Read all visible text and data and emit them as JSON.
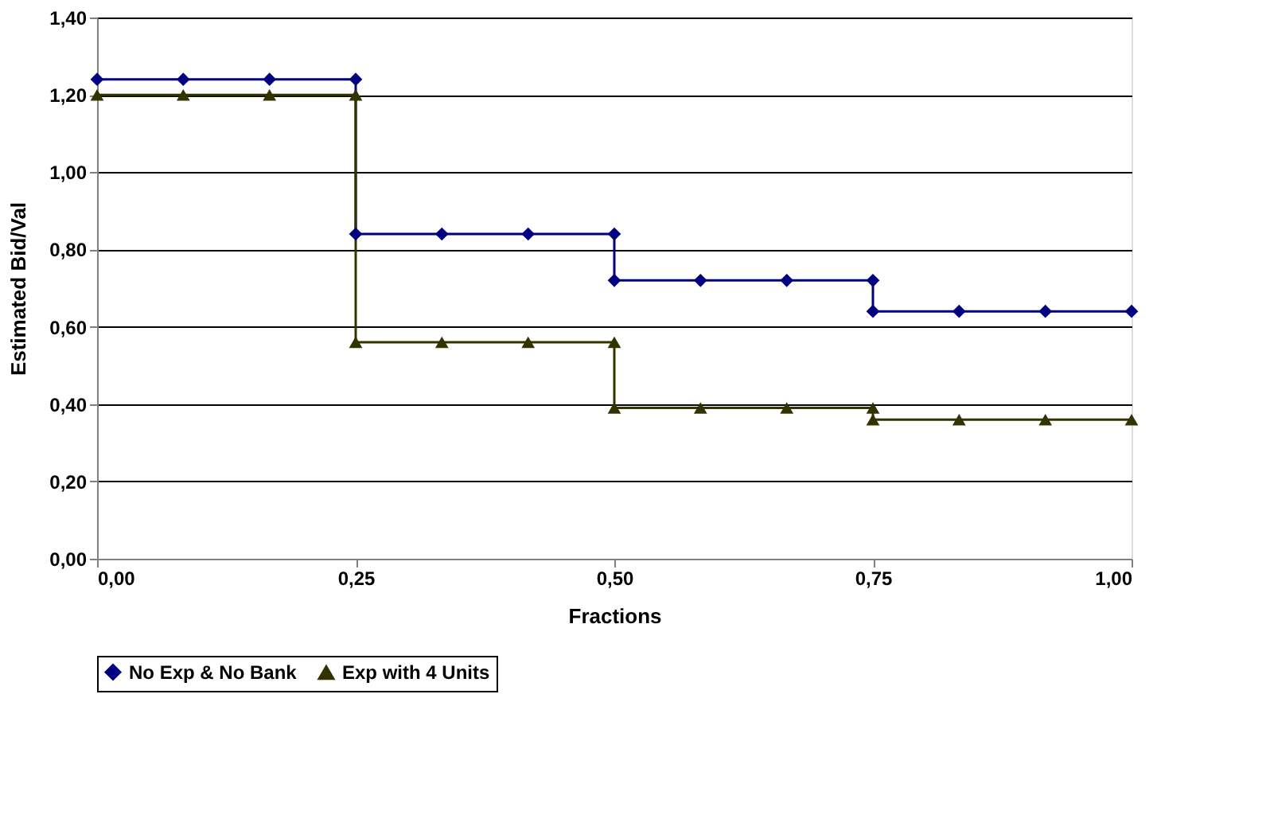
{
  "chart_data": {
    "type": "line",
    "xlabel": "Fractions",
    "ylabel": "Estimated Bid/Val",
    "xlim": [
      0,
      1
    ],
    "xticks": [
      {
        "value": 0,
        "label": "0,00"
      },
      {
        "value": 0.25,
        "label": "0,25"
      },
      {
        "value": 0.5,
        "label": "0,50"
      },
      {
        "value": 0.75,
        "label": "0,75"
      },
      {
        "value": 1,
        "label": "1,00"
      }
    ],
    "ylim": [
      0,
      1.4
    ],
    "yticks": [
      {
        "value": 0,
        "label": "0,00"
      },
      {
        "value": 0.2,
        "label": "0,20"
      },
      {
        "value": 0.4,
        "label": "0,40"
      },
      {
        "value": 0.6,
        "label": "0,60"
      },
      {
        "value": 0.8,
        "label": "0,80"
      },
      {
        "value": 1.0,
        "label": "1,00"
      },
      {
        "value": 1.2,
        "label": "1,20"
      },
      {
        "value": 1.4,
        "label": "1,40"
      }
    ],
    "grid": "y",
    "legend": "bottom",
    "series": [
      {
        "name": "No Exp & No Bank",
        "color": "#000080",
        "marker": "diamond",
        "x": [
          0,
          0.0833,
          0.1667,
          0.25,
          0.25,
          0.3333,
          0.4167,
          0.5,
          0.5,
          0.5833,
          0.6667,
          0.75,
          0.75,
          0.8333,
          0.9167,
          1.0
        ],
        "values": [
          1.24,
          1.24,
          1.24,
          1.24,
          0.84,
          0.84,
          0.84,
          0.84,
          0.72,
          0.72,
          0.72,
          0.72,
          0.64,
          0.64,
          0.64,
          0.64
        ]
      },
      {
        "name": "Exp with 4 Units",
        "color": "#333300",
        "marker": "triangle",
        "x": [
          0,
          0.0833,
          0.1667,
          0.25,
          0.25,
          0.3333,
          0.4167,
          0.5,
          0.5,
          0.5833,
          0.6667,
          0.75,
          0.75,
          0.8333,
          0.9167,
          1.0
        ],
        "values": [
          1.2,
          1.2,
          1.2,
          1.2,
          0.56,
          0.56,
          0.56,
          0.56,
          0.39,
          0.39,
          0.39,
          0.39,
          0.36,
          0.36,
          0.36,
          0.36
        ]
      }
    ]
  }
}
